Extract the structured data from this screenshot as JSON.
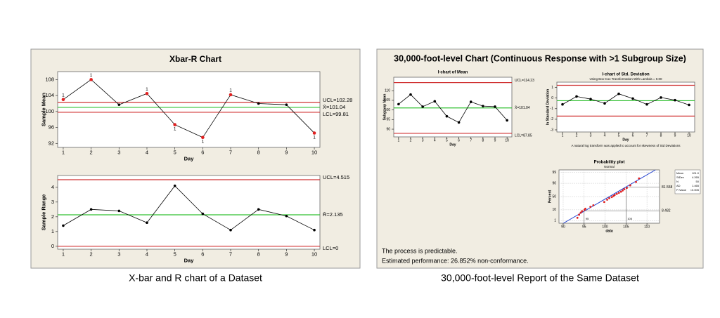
{
  "left_panel": {
    "title": "Xbar-R Chart",
    "caption": "X-bar and R chart of a Dataset"
  },
  "right_panel": {
    "title": "30,000-foot-level Chart (Continuous Response with >1 Subgroup Size)",
    "caption": "30,000-foot-level Report of the Same Dataset",
    "notes": [
      "The process is predictable.",
      "Estimated performance: 26.852% non-conformance."
    ]
  },
  "chart_data": [
    {
      "type": "control",
      "x": [
        1,
        2,
        3,
        4,
        5,
        6,
        7,
        8,
        9,
        10
      ],
      "values": [
        103,
        108,
        101.7,
        104.5,
        96.7,
        93.5,
        104.2,
        102,
        101.7,
        94.6
      ],
      "flag_labels": [
        "1",
        "1",
        null,
        "1",
        "1",
        "1",
        "1",
        null,
        null,
        "1"
      ],
      "xlim": [
        0.8,
        10.2
      ],
      "xticks": [
        1,
        2,
        3,
        4,
        5,
        6,
        7,
        8,
        9,
        10
      ],
      "ylim": [
        91,
        110
      ],
      "yticks": [
        92,
        96,
        100,
        104,
        108
      ],
      "xlabel": "Day",
      "ylabel": "Sample Mean",
      "color": "#000000",
      "limits": [
        {
          "value": 102.28,
          "label": "UCL=102.28",
          "color": "#d03030"
        },
        {
          "value": 101.04,
          "label": "X̄=101.04",
          "color": "#30c030"
        },
        {
          "value": 99.81,
          "label": "LCL=99.81",
          "color": "#d03030"
        }
      ]
    },
    {
      "type": "control",
      "x": [
        1,
        2,
        3,
        4,
        5,
        6,
        7,
        8,
        9,
        10
      ],
      "values": [
        1.4,
        2.5,
        2.4,
        1.6,
        4.1,
        2.2,
        1.1,
        2.5,
        2.05,
        1.1
      ],
      "xlim": [
        0.8,
        10.2
      ],
      "xticks": [
        1,
        2,
        3,
        4,
        5,
        6,
        7,
        8,
        9,
        10
      ],
      "ylim": [
        -0.2,
        4.8
      ],
      "yticks": [
        0,
        1,
        2,
        3,
        4
      ],
      "xlabel": "Day",
      "ylabel": "Sample Range",
      "color": "#000000",
      "limits": [
        {
          "value": 4.515,
          "label": "UCL=4.515",
          "color": "#d03030"
        },
        {
          "value": 2.135,
          "label": "R̄=2.135",
          "color": "#30c030"
        },
        {
          "value": 0,
          "label": "LCL=0",
          "color": "#d03030"
        }
      ]
    },
    {
      "type": "control",
      "title": "I-chart of Mean",
      "x": [
        1,
        2,
        3,
        4,
        5,
        6,
        7,
        8,
        9,
        10
      ],
      "values": [
        103,
        108,
        101.7,
        104.5,
        96.7,
        93.5,
        104.2,
        102,
        101.7,
        94.6
      ],
      "xlim": [
        0.6,
        10.4
      ],
      "xticks": [
        1,
        2,
        3,
        4,
        5,
        6,
        7,
        8,
        9,
        10
      ],
      "ylim": [
        86,
        117
      ],
      "yticks": [
        90,
        95,
        100,
        105,
        110
      ],
      "xlabel": "Day",
      "ylabel": "Subgroup Mean",
      "color": "#000000",
      "limits": [
        {
          "value": 114.23,
          "label": "UCL=114.23",
          "color": "#d03030"
        },
        {
          "value": 101.04,
          "label": "X̄=101.04",
          "color": "#30c030"
        },
        {
          "value": 87.85,
          "label": "LCL=87.85",
          "color": "#d03030"
        }
      ]
    },
    {
      "type": "control",
      "title": "I-chart of Std. Deviation",
      "subtitle": "Using Box-Cox Transformation With Lambda = 0.00",
      "note": "A natural log transform was applied to account for skewness of Std Deviations",
      "x": [
        1,
        2,
        3,
        4,
        5,
        6,
        7,
        8,
        9,
        10
      ],
      "values": [
        -0.6,
        0.15,
        -0.1,
        -0.5,
        0.4,
        -0.05,
        -0.6,
        0.05,
        -0.2,
        -0.65
      ],
      "xlim": [
        0.6,
        10.4
      ],
      "xticks": [
        1,
        2,
        3,
        4,
        5,
        6,
        7,
        8,
        9,
        10
      ],
      "ylim": [
        -3.2,
        1.5
      ],
      "yticks": [
        -3,
        -2,
        -1,
        0,
        1
      ],
      "xlabel": "Day",
      "ylabel": "ln Standard Deviation",
      "color": "#000000",
      "limits": [
        {
          "value": 1.2,
          "color": "#d03030"
        },
        {
          "value": -0.25,
          "color": "#30c030"
        },
        {
          "value": -1.7,
          "color": "#d03030"
        }
      ]
    },
    {
      "type": "probability",
      "title": "Probability plot",
      "subtitle": "Normal",
      "xlabel": "data",
      "ylabel": "Percent",
      "xlim": [
        89,
        113
      ],
      "xticks": [
        90,
        95,
        100,
        105,
        110
      ],
      "yticks": [
        1,
        10,
        50,
        90,
        99
      ],
      "x": [
        93.4,
        93.8,
        94.2,
        94.5,
        95.1,
        95.3,
        96.5,
        97.2,
        99.8,
        100.5,
        101,
        101.6,
        102,
        102.3,
        102.8,
        103.3,
        103.8,
        104.2,
        104.6,
        105.2,
        106,
        107.4,
        108.1
      ],
      "values": [
        2,
        4,
        6,
        8,
        10,
        12,
        16,
        20,
        30,
        38,
        44,
        48,
        52,
        56,
        60,
        64,
        68,
        72,
        76,
        80,
        86,
        92,
        96
      ],
      "color": "#e02020",
      "fit_color": "#2040d0",
      "fit": {
        "mean": 101.04,
        "stdev": 4.265
      },
      "stats": [
        {
          "name": "Mean",
          "text": "101.0"
        },
        {
          "name": "StDev",
          "text": "4.265"
        },
        {
          "name": "N",
          "text": "50"
        },
        {
          "name": "AD",
          "text": "1.465"
        },
        {
          "name": "P-Value",
          "text": "<0.005"
        }
      ],
      "ref_lines": [
        {
          "x": 95,
          "y": 8.482
        },
        {
          "x": 105,
          "y": 81.558
        }
      ]
    }
  ]
}
